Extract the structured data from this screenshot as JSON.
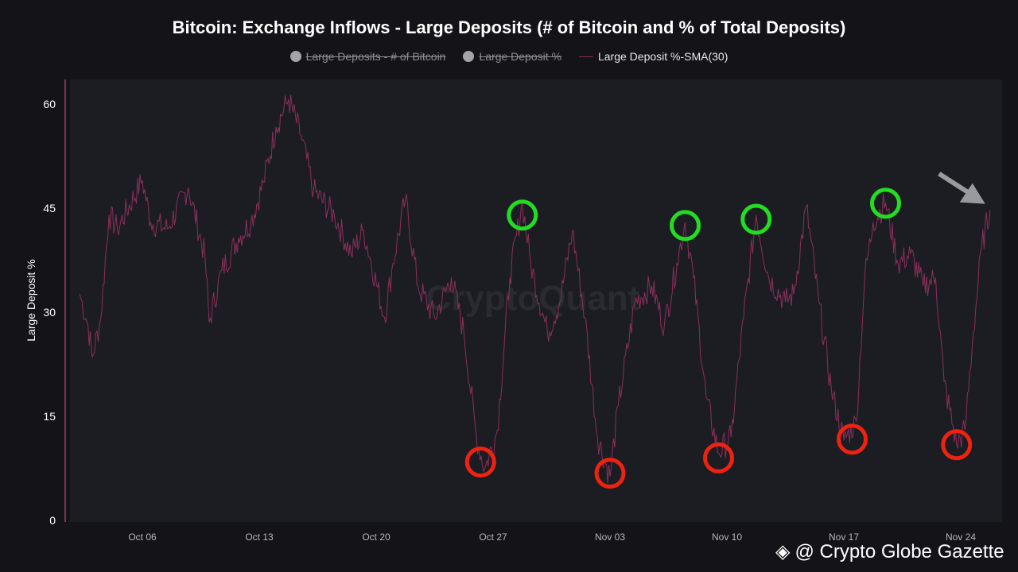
{
  "chart_data": {
    "type": "line",
    "title": "Bitcoin: Exchange Inflows - Large Deposits (# of Bitcoin and % of Total Deposits)",
    "ylabel": "Large Deposit %",
    "xlabel": "",
    "ylim": [
      0,
      63
    ],
    "yticks": [
      "0",
      "15",
      "30",
      "45",
      "60"
    ],
    "xticks": [
      "Oct 06",
      "Oct 13",
      "Oct 20",
      "Oct 27",
      "Nov 03",
      "Nov 10",
      "Nov 17",
      "Nov 24"
    ],
    "grid": false,
    "legend_position": "top-center",
    "legend": [
      {
        "name": "Large Deposits - # of Bitcoin",
        "hidden": true
      },
      {
        "name": "Large Deposit %",
        "hidden": true
      },
      {
        "name": "Large Deposit %-SMA(30)",
        "hidden": false
      }
    ],
    "series": [
      {
        "name": "Large Deposit %-SMA(30)",
        "color": "#8b2f5a",
        "points": [
          [
            "Oct 02 06:00",
            32.6
          ],
          [
            "Oct 02 18:00",
            28
          ],
          [
            "Oct 03 00:00",
            23.5
          ],
          [
            "Oct 03 12:00",
            29
          ],
          [
            "Oct 04 00:00",
            44
          ],
          [
            "Oct 04 12:00",
            42
          ],
          [
            "Oct 06 00:00",
            49
          ],
          [
            "Oct 06 12:00",
            43
          ],
          [
            "Oct 07 12:00",
            42
          ],
          [
            "Oct 08 18:00",
            48
          ],
          [
            "Oct 09 18:00",
            38
          ],
          [
            "Oct 10 00:00",
            28.6
          ],
          [
            "Oct 10 18:00",
            36
          ],
          [
            "Oct 11 18:00",
            40.7
          ],
          [
            "Oct 12 12:00",
            43
          ],
          [
            "Oct 13 06:00",
            48.7
          ],
          [
            "Oct 14 00:00",
            56.7
          ],
          [
            "Oct 14 18:00",
            60.7
          ],
          [
            "Oct 15 12:00",
            55.5
          ],
          [
            "Oct 16 06:00",
            47.5
          ],
          [
            "Oct 17 12:00",
            44
          ],
          [
            "Oct 18 12:00",
            38.4
          ],
          [
            "Oct 19 06:00",
            41.8
          ],
          [
            "Oct 20 12:00",
            29.2
          ],
          [
            "Oct 21 00:00",
            37
          ],
          [
            "Oct 21 18:00",
            46.4
          ],
          [
            "Oct 22 12:00",
            33.8
          ],
          [
            "Oct 23 12:00",
            29.2
          ],
          [
            "Oct 24 12:00",
            35
          ],
          [
            "Oct 25 06:00",
            27
          ],
          [
            "Oct 26 00:00",
            12
          ],
          [
            "Oct 26 12:00",
            7.4
          ],
          [
            "Oct 27 06:00",
            13
          ],
          [
            "Oct 28 00:00",
            35
          ],
          [
            "Oct 28 18:00",
            45.8
          ],
          [
            "Oct 29 06:00",
            37
          ],
          [
            "Oct 30 06:00",
            27
          ],
          [
            "Oct 31 00:00",
            31.5
          ],
          [
            "Oct 31 18:00",
            41.8
          ],
          [
            "Nov 01 12:00",
            29.2
          ],
          [
            "Nov 02 06:00",
            12
          ],
          [
            "Nov 03 00:00",
            6.3
          ],
          [
            "Nov 03 12:00",
            16.6
          ],
          [
            "Nov 04 12:00",
            31.5
          ],
          [
            "Nov 05 12:00",
            33.8
          ],
          [
            "Nov 06 06:00",
            28
          ],
          [
            "Nov 07 00:00",
            37
          ],
          [
            "Nov 07 12:00",
            43
          ],
          [
            "Nov 08 00:00",
            35
          ],
          [
            "Nov 08 18:00",
            17.8
          ],
          [
            "Nov 09 12:00",
            9.7
          ],
          [
            "Nov 10 06:00",
            12
          ],
          [
            "Nov 11 00:00",
            29.2
          ],
          [
            "Nov 11 18:00",
            44
          ],
          [
            "Nov 12 12:00",
            35
          ],
          [
            "Nov 13 12:00",
            31.5
          ],
          [
            "Nov 14 00:00",
            32.6
          ],
          [
            "Nov 14 18:00",
            45.2
          ],
          [
            "Nov 15 12:00",
            31.5
          ],
          [
            "Nov 16 06:00",
            18.9
          ],
          [
            "Nov 17 00:00",
            11.5
          ],
          [
            "Nov 17 18:00",
            14.3
          ],
          [
            "Nov 18 06:00",
            35
          ],
          [
            "Nov 18 18:00",
            43
          ],
          [
            "Nov 19 12:00",
            45.8
          ],
          [
            "Nov 20 06:00",
            37
          ],
          [
            "Nov 21 00:00",
            38.4
          ],
          [
            "Nov 21 18:00",
            33.8
          ],
          [
            "Nov 22 12:00",
            35
          ],
          [
            "Nov 23 00:00",
            20
          ],
          [
            "Nov 23 18:00",
            10.9
          ],
          [
            "Nov 24 06:00",
            13
          ],
          [
            "Nov 24 18:00",
            27
          ],
          [
            "Nov 25 06:00",
            39.5
          ],
          [
            "Nov 25 18:00",
            44.7
          ]
        ]
      }
    ],
    "annotations": {
      "green_circles": [
        [
          "Oct 28 18:00",
          44
        ],
        [
          "Nov 07 12:00",
          42.5
        ],
        [
          "Nov 11 18:00",
          43.4
        ],
        [
          "Nov 19 12:00",
          45.7
        ]
      ],
      "red_circles": [
        [
          "Oct 26 06:00",
          8.4
        ],
        [
          "Nov 03 00:00",
          6.8
        ],
        [
          "Nov 09 12:00",
          9
        ],
        [
          "Nov 17 12:00",
          11.7
        ],
        [
          "Nov 23 18:00",
          10.9
        ]
      ],
      "arrow_target": [
        "Nov 25 18:00",
        44.7
      ],
      "colors": {
        "green": "#22dd22",
        "red": "#ee2211",
        "arrow": "#9a9a9e"
      }
    }
  },
  "watermark": {
    "center": "CryptoQuant",
    "credit": "@ Crypto Globe Gazette"
  }
}
